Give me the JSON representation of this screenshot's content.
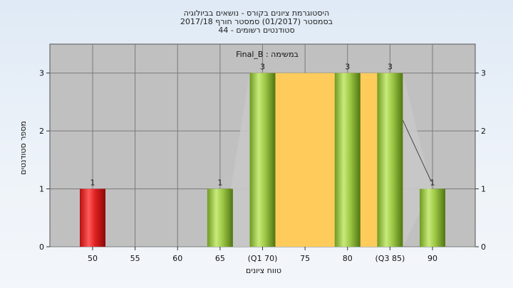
{
  "title_lines": [
    "היסטוגרמת ציונים בקורס - נושאים בביולוגיה",
    "בסמסטר  (01/2017)  סמסטר חורף 2017/18",
    "סטודנטים רשומים - 44"
  ],
  "colors": {
    "plot_bg": "#c0c0c0",
    "gridline": "#7a7a7a",
    "band": "#ffcc5c",
    "band_shadow": "#c8c8c8",
    "bar_green": "#9dc845",
    "bar_red": "#e02020"
  },
  "chart_data": {
    "type": "bar",
    "subtitle": "במשימה : Final_B",
    "categories": [
      "50",
      "55",
      "60",
      "65",
      "(Q1 70)",
      "75",
      "80",
      "(Q3 85)",
      "90"
    ],
    "values": [
      1,
      0,
      0,
      1,
      3,
      0,
      3,
      3,
      1
    ],
    "value_labels": [
      "1",
      "",
      "",
      "1",
      "3",
      "",
      "3",
      "3",
      "1"
    ],
    "bar_colors": [
      "red",
      "",
      "",
      "green",
      "green",
      "",
      "green",
      "green",
      "green"
    ],
    "xlabel": "טווח ציונים",
    "ylabel": "מספר סטודנטים",
    "ylim": [
      0,
      3.5
    ],
    "yticks": [
      0,
      1,
      2,
      3
    ],
    "grid": true,
    "interquartile_band": {
      "from": "(Q1 70)",
      "to": "(Q3 85)"
    }
  }
}
